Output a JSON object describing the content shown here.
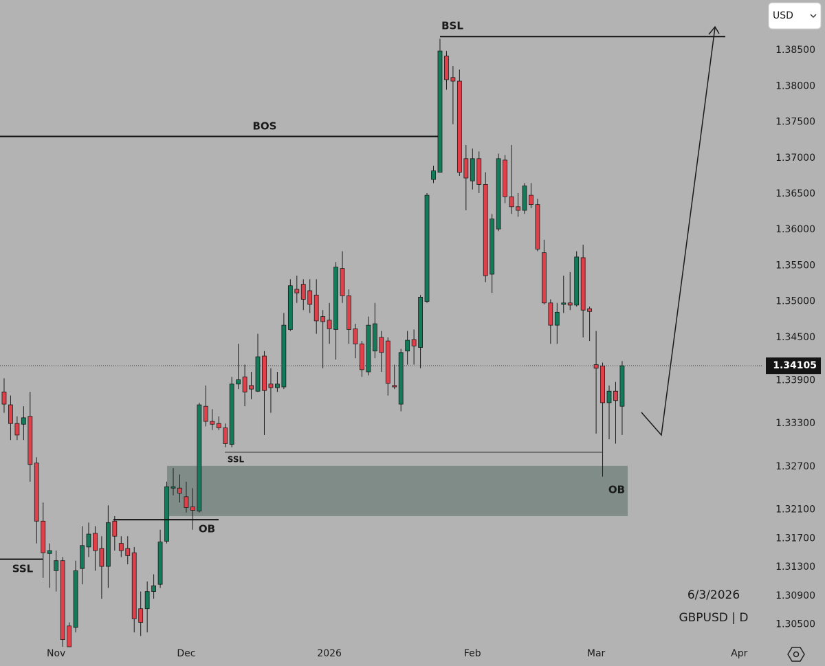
{
  "chart_data": {
    "type": "candlestick",
    "currency": "USD",
    "date": "6/3/2026",
    "symbol": "GBPUSD | D",
    "up_color": "#137a5a",
    "down_color": "#e0404a",
    "xlim": [
      -0.63,
      116.67
    ],
    "ylim": [
      1.302,
      1.392
    ],
    "xticks": [
      {
        "value": 8,
        "label": "Nov"
      },
      {
        "value": 28,
        "label": "Dec"
      },
      {
        "value": 50,
        "label": "2026"
      },
      {
        "value": 72,
        "label": "Feb"
      },
      {
        "value": 91,
        "label": "Mar"
      },
      {
        "value": 113,
        "label": "Apr"
      }
    ],
    "yticks": [
      {
        "value": 1.385,
        "label": "1.38500"
      },
      {
        "value": 1.38,
        "label": "1.38000"
      },
      {
        "value": 1.375,
        "label": "1.37500"
      },
      {
        "value": 1.37,
        "label": "1.37000"
      },
      {
        "value": 1.365,
        "label": "1.36500"
      },
      {
        "value": 1.36,
        "label": "1.36000"
      },
      {
        "value": 1.355,
        "label": "1.35500"
      },
      {
        "value": 1.35,
        "label": "1.35000"
      },
      {
        "value": 1.345,
        "label": "1.34500"
      },
      {
        "value": 1.339,
        "label": "1.33900"
      },
      {
        "value": 1.333,
        "label": "1.33300"
      },
      {
        "value": 1.327,
        "label": "1.32700"
      },
      {
        "value": 1.321,
        "label": "1.32100"
      },
      {
        "value": 1.317,
        "label": "1.31700"
      },
      {
        "value": 1.313,
        "label": "1.31300"
      },
      {
        "value": 1.309,
        "label": "1.30900"
      },
      {
        "value": 1.305,
        "label": "1.30500"
      }
    ],
    "open": [
      1.3374,
      1.3356,
      1.333,
      1.3329,
      1.334,
      1.3275,
      1.3194,
      1.3149,
      1.3125,
      1.3139,
      1.3048,
      1.3046,
      1.3128,
      1.3158,
      1.3177,
      1.3156,
      1.3131,
      1.3194,
      1.3163,
      1.3156,
      1.315,
      1.3072,
      1.3072,
      1.3096,
      1.3106,
      1.3166,
      1.324,
      1.324,
      1.3228,
      1.3214,
      1.3208,
      1.3354,
      1.3333,
      1.333,
      1.3324,
      1.3301,
      1.3385,
      1.3395,
      1.3383,
      1.3375,
      1.3424,
      1.3385,
      1.338,
      1.3381,
      1.3461,
      1.3517,
      1.3524,
      1.3515,
      1.3509,
      1.3479,
      1.3474,
      1.3461,
      1.3546,
      1.3508,
      1.3462,
      1.3441,
      1.3402,
      1.3431,
      1.345,
      1.3445,
      1.3383,
      1.3357,
      1.3431,
      1.3447,
      1.3436,
      1.35,
      1.367,
      1.368,
      1.3842,
      1.3812,
      1.3807,
      1.3699,
      1.3668,
      1.3699,
      1.3663,
      1.3538,
      1.3601,
      1.3697,
      1.3646,
      1.3632,
      1.3627,
      1.3648,
      1.3635,
      1.3568,
      1.3498,
      1.3467,
      1.3496,
      1.3498,
      1.3495,
      1.3561,
      1.349,
      1.3412,
      1.341,
      1.3359,
      1.3375,
      1.3354
    ],
    "high": [
      1.3393,
      1.3369,
      1.334,
      1.3354,
      1.3374,
      1.3283,
      1.322,
      1.3163,
      1.3153,
      1.3144,
      1.3053,
      1.3139,
      1.3187,
      1.3192,
      1.3187,
      1.3173,
      1.3216,
      1.3201,
      1.3173,
      1.3173,
      1.3158,
      1.3096,
      1.311,
      1.312,
      1.3182,
      1.3249,
      1.3268,
      1.3259,
      1.3249,
      1.324,
      1.3359,
      1.3383,
      1.335,
      1.334,
      1.333,
      1.3395,
      1.3441,
      1.3412,
      1.3402,
      1.3455,
      1.3431,
      1.3407,
      1.3402,
      1.3484,
      1.3531,
      1.3536,
      1.3531,
      1.3531,
      1.3531,
      1.3488,
      1.3498,
      1.3555,
      1.357,
      1.3517,
      1.3469,
      1.3445,
      1.3479,
      1.3498,
      1.3459,
      1.345,
      1.3412,
      1.3434,
      1.3459,
      1.3461,
      1.3509,
      1.3651,
      1.3689,
      1.3866,
      1.3849,
      1.3828,
      1.3823,
      1.3718,
      1.3713,
      1.3709,
      1.368,
      1.3622,
      1.3706,
      1.3704,
      1.3718,
      1.3651,
      1.3665,
      1.3665,
      1.3643,
      1.3586,
      1.3503,
      1.3498,
      1.3536,
      1.3541,
      1.357,
      1.3579,
      1.3493,
      1.3459,
      1.3415,
      1.3383,
      1.3388,
      1.3417
    ],
    "low": [
      1.3345,
      1.3307,
      1.3307,
      1.3307,
      1.3249,
      1.3163,
      1.3115,
      1.3101,
      1.3096,
      1.3019,
      1.3019,
      1.3039,
      1.3106,
      1.3144,
      1.3125,
      1.3086,
      1.3101,
      1.3153,
      1.3144,
      1.3134,
      1.3039,
      1.3034,
      1.3039,
      1.3086,
      1.3101,
      1.3163,
      1.323,
      1.322,
      1.3206,
      1.3182,
      1.3206,
      1.3326,
      1.3321,
      1.3321,
      1.3297,
      1.3297,
      1.3378,
      1.3354,
      1.3364,
      1.3374,
      1.3314,
      1.3345,
      1.3374,
      1.3378,
      1.3459,
      1.3498,
      1.3488,
      1.3484,
      1.3455,
      1.3407,
      1.3441,
      1.3419,
      1.3498,
      1.3441,
      1.3421,
      1.3395,
      1.3397,
      1.3421,
      1.3402,
      1.3369,
      1.3378,
      1.3347,
      1.3412,
      1.3412,
      1.3407,
      1.3498,
      1.3665,
      1.368,
      1.3795,
      1.3747,
      1.3675,
      1.3627,
      1.3656,
      1.3651,
      1.3527,
      1.3512,
      1.3598,
      1.3637,
      1.3622,
      1.3618,
      1.3622,
      1.363,
      1.357,
      1.3496,
      1.3441,
      1.3441,
      1.3484,
      1.3488,
      1.3493,
      1.345,
      1.3445,
      1.3316,
      1.3256,
      1.3308,
      1.3302,
      1.3314
    ],
    "close": [
      1.3357,
      1.333,
      1.3314,
      1.3338,
      1.3273,
      1.3194,
      1.315,
      1.3153,
      1.3139,
      1.3029,
      1.3019,
      1.3125,
      1.316,
      1.3176,
      1.3153,
      1.3131,
      1.3192,
      1.3173,
      1.3153,
      1.3146,
      1.3058,
      1.3053,
      1.3096,
      1.3104,
      1.3165,
      1.3242,
      1.3242,
      1.3233,
      1.3213,
      1.3209,
      1.3356,
      1.3333,
      1.3329,
      1.3324,
      1.3302,
      1.3385,
      1.3391,
      1.3374,
      1.3378,
      1.3423,
      1.3376,
      1.338,
      1.3385,
      1.3467,
      1.3522,
      1.3512,
      1.3503,
      1.3496,
      1.3473,
      1.3472,
      1.3462,
      1.3548,
      1.3508,
      1.3461,
      1.3441,
      1.3405,
      1.3467,
      1.3469,
      1.3429,
      1.3386,
      1.3381,
      1.3429,
      1.3446,
      1.3438,
      1.3506,
      1.3648,
      1.3682,
      1.3849,
      1.3809,
      1.3807,
      1.368,
      1.3672,
      1.3699,
      1.3663,
      1.3536,
      1.3615,
      1.3699,
      1.3646,
      1.3632,
      1.3627,
      1.3661,
      1.3635,
      1.3573,
      1.3498,
      1.3467,
      1.3485,
      1.3498,
      1.3495,
      1.3562,
      1.3488,
      1.3486,
      1.3407,
      1.3359,
      1.3375,
      1.3362,
      1.34105
    ],
    "annotations": [
      {
        "label": "BSL",
        "level": 1.3869
      },
      {
        "label": "BOS",
        "level": 1.373
      },
      {
        "label": "SSL",
        "level": 1.329
      },
      {
        "label": "SSL",
        "level": 1.3141
      },
      {
        "label": "OB",
        "level": 1.3196
      }
    ],
    "zone": {
      "label": "OB",
      "top": 1.3271,
      "bottom": 1.3201,
      "color": "#7f8c88"
    }
  }
}
